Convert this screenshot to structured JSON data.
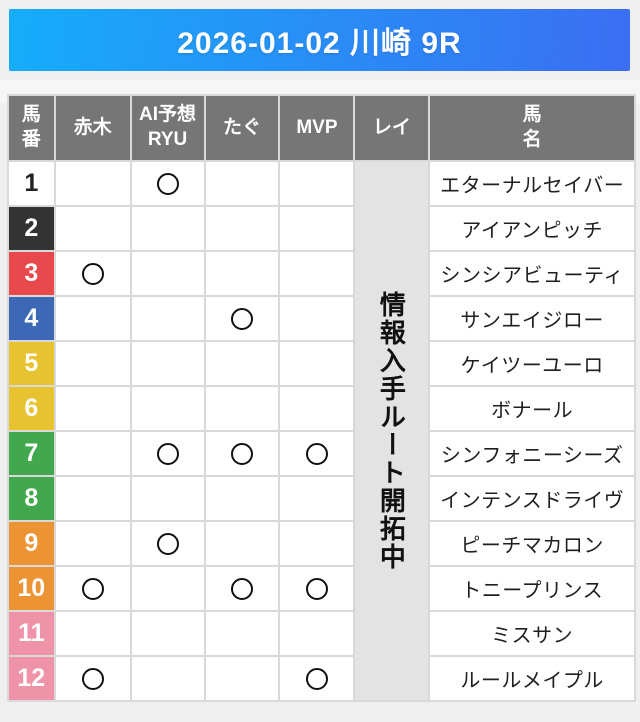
{
  "race_header": {
    "title": "2026-01-02 川崎 9R",
    "gradient_left": "#16adfa",
    "gradient_right": "#3b6ef3"
  },
  "table": {
    "columns": [
      {
        "id": "umaban",
        "label": "馬\n番"
      },
      {
        "id": "akagi",
        "label": "赤木"
      },
      {
        "id": "ai-yosou-ryu",
        "label": "AI予想\nRYU"
      },
      {
        "id": "tagu",
        "label": "たぐ"
      },
      {
        "id": "mvp",
        "label": "MVP"
      },
      {
        "id": "rei",
        "label": "レイ"
      },
      {
        "id": "umamei",
        "label": "馬\n名"
      }
    ],
    "mark_symbol": "〇",
    "rei_notice": "情報入手ルート開拓中",
    "header_bg": "#767676",
    "notice_bg": "#e3e3e3",
    "rows": [
      {
        "num": "1",
        "frame_color": "#ffffff",
        "num_color": "#222222",
        "marks": [
          "",
          "〇",
          "",
          ""
        ],
        "name": "エターナルセイバー"
      },
      {
        "num": "2",
        "frame_color": "#333333",
        "num_color": "#ffffff",
        "marks": [
          "",
          "",
          "",
          ""
        ],
        "name": "アイアンピッチ"
      },
      {
        "num": "3",
        "frame_color": "#e8494d",
        "num_color": "#ffffff",
        "marks": [
          "〇",
          "",
          "",
          ""
        ],
        "name": "シンシアビューティ"
      },
      {
        "num": "4",
        "frame_color": "#3d68b5",
        "num_color": "#ffffff",
        "marks": [
          "",
          "",
          "〇",
          ""
        ],
        "name": "サンエイジロー"
      },
      {
        "num": "5",
        "frame_color": "#e7c331",
        "num_color": "#ffffff",
        "marks": [
          "",
          "",
          "",
          ""
        ],
        "name": "ケイツーユーロ"
      },
      {
        "num": "6",
        "frame_color": "#e7c331",
        "num_color": "#ffffff",
        "marks": [
          "",
          "",
          "",
          ""
        ],
        "name": "ボナール"
      },
      {
        "num": "7",
        "frame_color": "#42a84d",
        "num_color": "#ffffff",
        "marks": [
          "",
          "〇",
          "〇",
          "〇"
        ],
        "name": "シンフォニーシーズ"
      },
      {
        "num": "8",
        "frame_color": "#42a84d",
        "num_color": "#ffffff",
        "marks": [
          "",
          "",
          "",
          ""
        ],
        "name": "インテンスドライヴ"
      },
      {
        "num": "9",
        "frame_color": "#ec9334",
        "num_color": "#ffffff",
        "marks": [
          "",
          "〇",
          "",
          ""
        ],
        "name": "ピーチマカロン"
      },
      {
        "num": "10",
        "frame_color": "#ec9334",
        "num_color": "#ffffff",
        "marks": [
          "〇",
          "",
          "〇",
          "〇"
        ],
        "name": "トニープリンス"
      },
      {
        "num": "11",
        "frame_color": "#ef94a8",
        "num_color": "#ffffff",
        "marks": [
          "",
          "",
          "",
          ""
        ],
        "name": "ミスサン"
      },
      {
        "num": "12",
        "frame_color": "#ef94a8",
        "num_color": "#ffffff",
        "marks": [
          "〇",
          "",
          "",
          "〇"
        ],
        "name": "ルールメイプル"
      }
    ]
  }
}
